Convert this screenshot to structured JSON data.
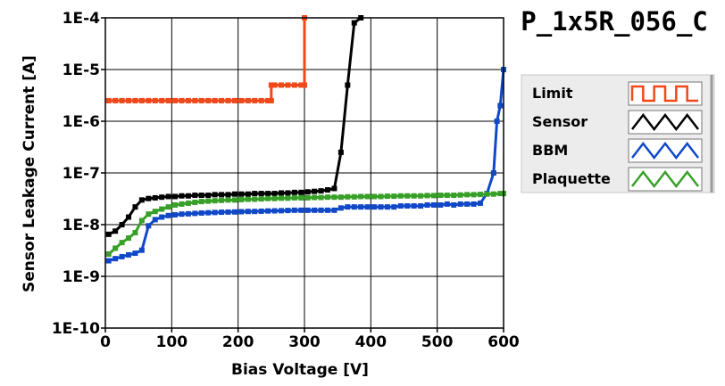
{
  "chart_data": {
    "type": "line",
    "title": "P_1x5R_056_C",
    "xlabel": "Bias Voltage [V]",
    "ylabel": "Sensor Leakage Current [A]",
    "xlim": [
      0,
      600
    ],
    "ylim": [
      1e-10,
      0.0001
    ],
    "yscale": "log",
    "grid": true,
    "legend_position": "right",
    "x_ticks": [
      0,
      100,
      200,
      300,
      400,
      500,
      600
    ],
    "x_tick_labels": [
      "0",
      "100",
      "200",
      "300",
      "400",
      "500",
      "600"
    ],
    "y_ticks": [
      1e-10,
      1e-09,
      1e-08,
      1e-07,
      1e-06,
      1e-05,
      0.0001
    ],
    "y_tick_labels": [
      "1E-10",
      "1E-9",
      "1E-8",
      "1E-7",
      "1E-6",
      "1E-5",
      "1E-4"
    ],
    "series": [
      {
        "name": "Limit",
        "color": "#f04818",
        "step": true,
        "x": [
          5,
          15,
          25,
          35,
          45,
          55,
          65,
          75,
          85,
          95,
          105,
          115,
          125,
          135,
          145,
          155,
          165,
          175,
          185,
          195,
          205,
          215,
          225,
          235,
          245,
          250,
          250,
          255,
          265,
          275,
          285,
          295,
          300,
          300
        ],
        "y": [
          2.5e-06,
          2.5e-06,
          2.5e-06,
          2.5e-06,
          2.5e-06,
          2.5e-06,
          2.5e-06,
          2.5e-06,
          2.5e-06,
          2.5e-06,
          2.5e-06,
          2.5e-06,
          2.5e-06,
          2.5e-06,
          2.5e-06,
          2.5e-06,
          2.5e-06,
          2.5e-06,
          2.5e-06,
          2.5e-06,
          2.5e-06,
          2.5e-06,
          2.5e-06,
          2.5e-06,
          2.5e-06,
          2.5e-06,
          5e-06,
          5e-06,
          5e-06,
          5e-06,
          5e-06,
          5e-06,
          5e-06,
          0.0001
        ]
      },
      {
        "name": "Sensor",
        "color": "#000000",
        "x": [
          5,
          15,
          25,
          35,
          45,
          55,
          65,
          75,
          85,
          95,
          105,
          115,
          125,
          135,
          145,
          155,
          165,
          175,
          185,
          195,
          205,
          215,
          225,
          235,
          245,
          255,
          265,
          275,
          285,
          295,
          305,
          315,
          325,
          335,
          345,
          355,
          365,
          375,
          385
        ],
        "y": [
          6.5e-09,
          7.5e-09,
          1e-08,
          1.4e-08,
          2.2e-08,
          3e-08,
          3.2e-08,
          3.3e-08,
          3.4e-08,
          3.5e-08,
          3.5e-08,
          3.6e-08,
          3.6e-08,
          3.7e-08,
          3.7e-08,
          3.7e-08,
          3.8e-08,
          3.8e-08,
          3.8e-08,
          3.9e-08,
          3.9e-08,
          3.9e-08,
          4e-08,
          4e-08,
          4e-08,
          4e-08,
          4.1e-08,
          4.1e-08,
          4.2e-08,
          4.2e-08,
          4.3e-08,
          4.4e-08,
          4.5e-08,
          4.7e-08,
          5e-08,
          2.5e-07,
          5e-06,
          8e-05,
          0.0001
        ]
      },
      {
        "name": "BBM",
        "color": "#1048c8",
        "x": [
          5,
          15,
          25,
          35,
          45,
          55,
          65,
          75,
          85,
          95,
          105,
          115,
          125,
          135,
          145,
          155,
          165,
          175,
          185,
          195,
          205,
          215,
          225,
          235,
          245,
          255,
          265,
          275,
          285,
          295,
          305,
          315,
          325,
          335,
          345,
          355,
          365,
          375,
          385,
          395,
          405,
          415,
          425,
          435,
          445,
          455,
          465,
          475,
          485,
          495,
          505,
          515,
          525,
          535,
          545,
          555,
          565,
          575,
          585,
          590,
          595,
          600
        ],
        "y": [
          2e-09,
          2.2e-09,
          2.4e-09,
          2.6e-09,
          2.8e-09,
          3.2e-09,
          9.5e-09,
          1.25e-08,
          1.4e-08,
          1.5e-08,
          1.55e-08,
          1.6e-08,
          1.62e-08,
          1.65e-08,
          1.68e-08,
          1.7e-08,
          1.72e-08,
          1.74e-08,
          1.75e-08,
          1.76e-08,
          1.78e-08,
          1.8e-08,
          1.8e-08,
          1.82e-08,
          1.84e-08,
          1.85e-08,
          1.86e-08,
          1.88e-08,
          1.9e-08,
          1.9e-08,
          1.9e-08,
          1.9e-08,
          1.9e-08,
          1.9e-08,
          1.9e-08,
          2.1e-08,
          2.2e-08,
          2.2e-08,
          2.2e-08,
          2.2e-08,
          2.2e-08,
          2.2e-08,
          2.2e-08,
          2.2e-08,
          2.3e-08,
          2.3e-08,
          2.3e-08,
          2.3e-08,
          2.4e-08,
          2.4e-08,
          2.4e-08,
          2.5e-08,
          2.4e-08,
          2.5e-08,
          2.5e-08,
          2.5e-08,
          2.6e-08,
          4e-08,
          1e-07,
          1e-06,
          2e-06,
          1e-05
        ]
      },
      {
        "name": "Plaquette",
        "color": "#38a028",
        "x": [
          5,
          15,
          25,
          35,
          45,
          55,
          65,
          75,
          85,
          95,
          105,
          115,
          125,
          135,
          145,
          155,
          165,
          175,
          185,
          195,
          205,
          215,
          225,
          235,
          245,
          255,
          265,
          275,
          285,
          295,
          305,
          315,
          325,
          335,
          345,
          355,
          365,
          375,
          385,
          395,
          405,
          415,
          425,
          435,
          445,
          455,
          465,
          475,
          485,
          495,
          505,
          515,
          525,
          535,
          545,
          555,
          565,
          575,
          585,
          595,
          600
        ],
        "y": [
          2.7e-09,
          3.5e-09,
          4.5e-09,
          5.5e-09,
          7e-09,
          1.2e-08,
          1.6e-08,
          1.8e-08,
          2e-08,
          2.2e-08,
          2.4e-08,
          2.5e-08,
          2.6e-08,
          2.7e-08,
          2.8e-08,
          2.85e-08,
          2.9e-08,
          2.95e-08,
          3e-08,
          3e-08,
          3.05e-08,
          3.1e-08,
          3.1e-08,
          3.15e-08,
          3.2e-08,
          3.2e-08,
          3.25e-08,
          3.25e-08,
          3.3e-08,
          3.3e-08,
          3.3e-08,
          3.35e-08,
          3.35e-08,
          3.4e-08,
          3.4e-08,
          3.4e-08,
          3.45e-08,
          3.45e-08,
          3.5e-08,
          3.5e-08,
          3.5e-08,
          3.5e-08,
          3.55e-08,
          3.55e-08,
          3.6e-08,
          3.6e-08,
          3.6e-08,
          3.6e-08,
          3.65e-08,
          3.65e-08,
          3.7e-08,
          3.7e-08,
          3.7e-08,
          3.75e-08,
          3.8e-08,
          3.8e-08,
          3.85e-08,
          3.9e-08,
          3.9e-08,
          4e-08,
          4e-08
        ]
      }
    ]
  }
}
